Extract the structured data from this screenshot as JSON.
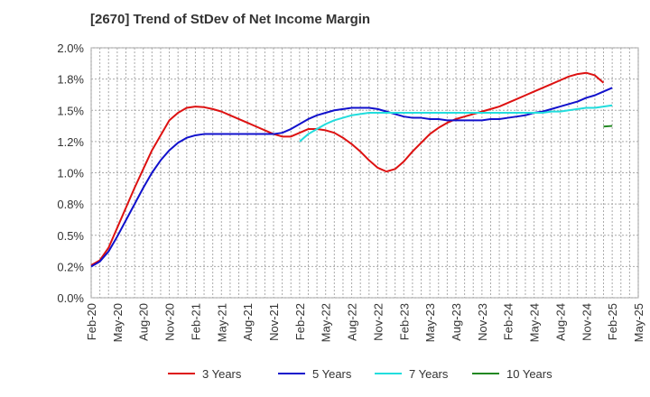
{
  "chart_data": {
    "type": "line",
    "title": "[2670]  Trend of StDev of Net Income Margin",
    "xlabel": "",
    "ylabel": "",
    "ylim": [
      0,
      2.0
    ],
    "yticks": [
      0,
      0.25,
      0.5,
      0.75,
      1.0,
      1.25,
      1.5,
      1.75,
      2.0
    ],
    "ytick_labels": [
      "0.0%",
      "0.2%",
      "0.5%",
      "0.8%",
      "1.0%",
      "1.2%",
      "1.5%",
      "1.8%",
      "2.0%"
    ],
    "xticks": [
      "Feb-20",
      "May-20",
      "Aug-20",
      "Nov-20",
      "Feb-21",
      "May-21",
      "Aug-21",
      "Nov-21",
      "Feb-22",
      "May-22",
      "Aug-22",
      "Nov-22",
      "Feb-23",
      "May-23",
      "Aug-23",
      "Nov-23",
      "Feb-24",
      "May-24",
      "Aug-24",
      "Nov-24",
      "Feb-25",
      "May-25"
    ],
    "grid": true,
    "legend_position": "bottom",
    "series": [
      {
        "name": "3 Years",
        "color": "#dd1111",
        "x": [
          "Feb-20",
          "Mar-20",
          "Apr-20",
          "May-20",
          "Jun-20",
          "Jul-20",
          "Aug-20",
          "Sep-20",
          "Oct-20",
          "Nov-20",
          "Dec-20",
          "Jan-21",
          "Feb-21",
          "Mar-21",
          "Apr-21",
          "May-21",
          "Jun-21",
          "Jul-21",
          "Aug-21",
          "Sep-21",
          "Oct-21",
          "Nov-21",
          "Dec-21",
          "Jan-22",
          "Feb-22",
          "Mar-22",
          "Apr-22",
          "May-22",
          "Jun-22",
          "Jul-22",
          "Aug-22",
          "Sep-22",
          "Oct-22",
          "Nov-22",
          "Dec-22",
          "Jan-23",
          "Feb-23",
          "Mar-23",
          "Apr-23",
          "May-23",
          "Jun-23",
          "Jul-23",
          "Aug-23",
          "Sep-23",
          "Oct-23",
          "Nov-23",
          "Dec-23",
          "Jan-24",
          "Feb-24",
          "Mar-24",
          "Apr-24",
          "May-24",
          "Jun-24",
          "Jul-24",
          "Aug-24",
          "Sep-24",
          "Oct-24",
          "Nov-24",
          "Dec-24",
          "Jan-25",
          "Feb-25"
        ],
        "values": [
          0.26,
          0.3,
          0.4,
          0.56,
          0.72,
          0.88,
          1.03,
          1.18,
          1.3,
          1.42,
          1.48,
          1.52,
          1.53,
          1.525,
          1.51,
          1.49,
          1.46,
          1.43,
          1.4,
          1.37,
          1.34,
          1.31,
          1.29,
          1.29,
          1.32,
          1.35,
          1.35,
          1.34,
          1.32,
          1.28,
          1.23,
          1.17,
          1.1,
          1.04,
          1.01,
          1.03,
          1.09,
          1.17,
          1.24,
          1.31,
          1.36,
          1.4,
          1.43,
          1.45,
          1.47,
          1.49,
          1.51,
          1.53,
          1.56,
          1.59,
          1.62,
          1.65,
          1.68,
          1.71,
          1.74,
          1.77,
          1.79,
          1.8,
          1.78,
          1.72,
          null
        ]
      },
      {
        "name": "5 Years",
        "color": "#1111cc",
        "x": [
          "Feb-20",
          "Mar-20",
          "Apr-20",
          "May-20",
          "Jun-20",
          "Jul-20",
          "Aug-20",
          "Sep-20",
          "Oct-20",
          "Nov-20",
          "Dec-20",
          "Jan-21",
          "Feb-21",
          "Mar-21",
          "Apr-21",
          "May-21",
          "Jun-21",
          "Jul-21",
          "Aug-21",
          "Sep-21",
          "Oct-21",
          "Nov-21",
          "Dec-21",
          "Jan-22",
          "Feb-22",
          "Mar-22",
          "Apr-22",
          "May-22",
          "Jun-22",
          "Jul-22",
          "Aug-22",
          "Sep-22",
          "Oct-22",
          "Nov-22",
          "Dec-22",
          "Jan-23",
          "Feb-23",
          "Mar-23",
          "Apr-23",
          "May-23",
          "Jun-23",
          "Jul-23",
          "Aug-23",
          "Sep-23",
          "Oct-23",
          "Nov-23",
          "Dec-23",
          "Jan-24",
          "Feb-24",
          "Mar-24",
          "Apr-24",
          "May-24",
          "Jun-24",
          "Jul-24",
          "Aug-24",
          "Sep-24",
          "Oct-24",
          "Nov-24",
          "Dec-24",
          "Jan-25",
          "Feb-25"
        ],
        "values": [
          0.25,
          0.29,
          0.37,
          0.49,
          0.62,
          0.75,
          0.88,
          1.0,
          1.1,
          1.18,
          1.24,
          1.28,
          1.3,
          1.31,
          1.31,
          1.31,
          1.31,
          1.31,
          1.31,
          1.31,
          1.31,
          1.31,
          1.32,
          1.35,
          1.39,
          1.43,
          1.46,
          1.48,
          1.5,
          1.51,
          1.52,
          1.52,
          1.52,
          1.51,
          1.49,
          1.47,
          1.45,
          1.44,
          1.44,
          1.43,
          1.43,
          1.42,
          1.42,
          1.42,
          1.42,
          1.42,
          1.43,
          1.43,
          1.44,
          1.45,
          1.46,
          1.48,
          1.49,
          1.51,
          1.53,
          1.55,
          1.57,
          1.6,
          1.62,
          1.65,
          1.68
        ]
      },
      {
        "name": "7 Years",
        "color": "#22dddd",
        "x": [
          "Feb-22",
          "Mar-22",
          "Apr-22",
          "May-22",
          "Jun-22",
          "Jul-22",
          "Aug-22",
          "Sep-22",
          "Oct-22",
          "Nov-22",
          "Dec-22",
          "Jan-23",
          "Feb-23",
          "Mar-23",
          "Apr-23",
          "May-23",
          "Jun-23",
          "Jul-23",
          "Aug-23",
          "Sep-23",
          "Oct-23",
          "Nov-23",
          "Dec-23",
          "Jan-24",
          "Feb-24",
          "Mar-24",
          "Apr-24",
          "May-24",
          "Jun-24",
          "Jul-24",
          "Aug-24",
          "Sep-24",
          "Oct-24",
          "Nov-24",
          "Dec-24",
          "Jan-25",
          "Feb-25"
        ],
        "values": [
          1.25,
          1.31,
          1.35,
          1.39,
          1.42,
          1.44,
          1.46,
          1.47,
          1.48,
          1.48,
          1.48,
          1.48,
          1.48,
          1.48,
          1.48,
          1.48,
          1.48,
          1.48,
          1.48,
          1.48,
          1.48,
          1.48,
          1.48,
          1.48,
          1.48,
          1.48,
          1.48,
          1.48,
          1.48,
          1.49,
          1.49,
          1.5,
          1.51,
          1.52,
          1.52,
          1.53,
          1.54
        ]
      },
      {
        "name": "10 Years",
        "color": "#228822",
        "x": [
          "Jan-25",
          "Feb-25"
        ],
        "values": [
          1.37,
          1.375
        ]
      }
    ]
  }
}
